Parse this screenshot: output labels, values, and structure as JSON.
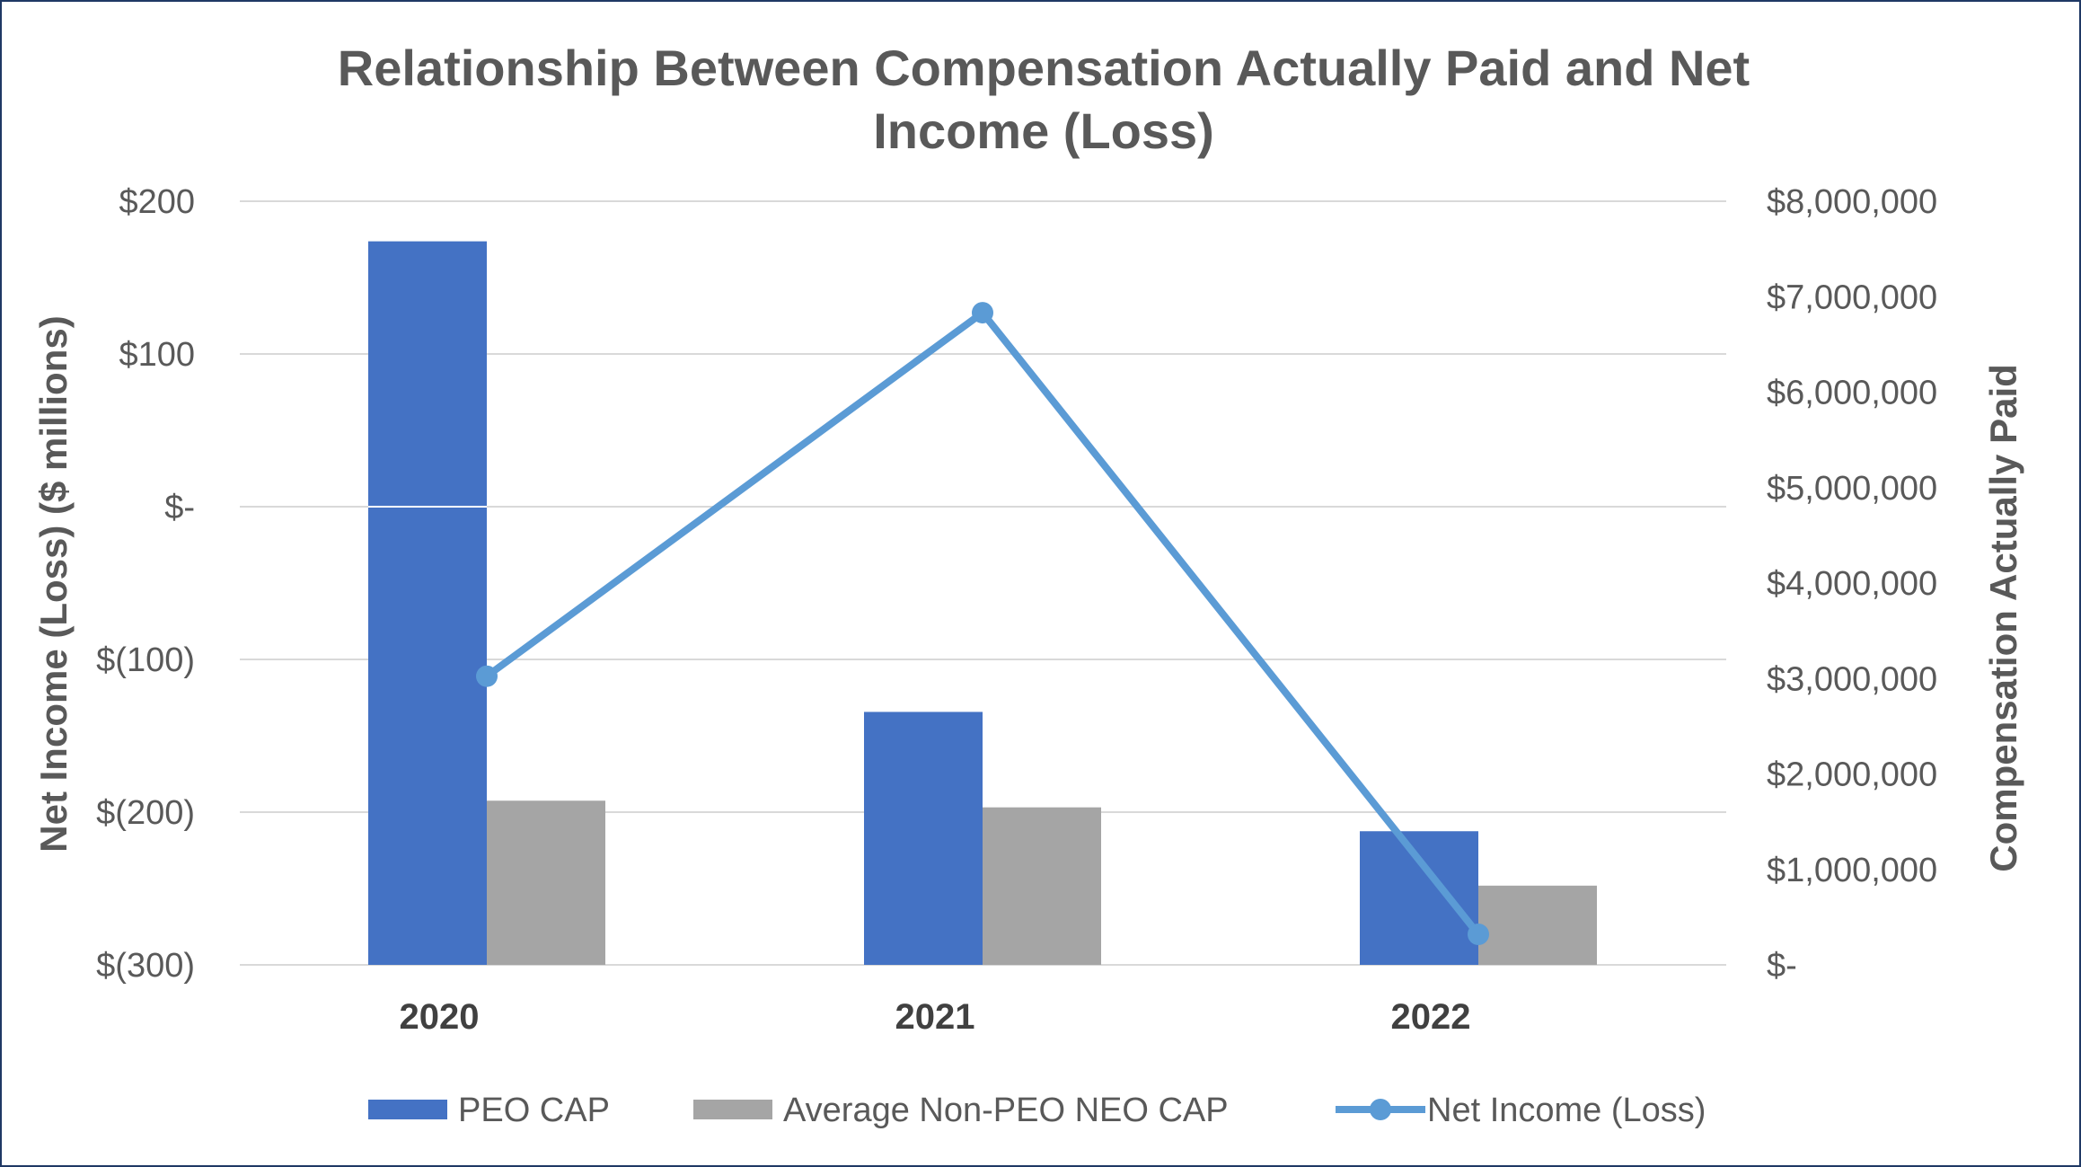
{
  "chart_data": {
    "type": "bar",
    "title_line1": "Relationship Between Compensation Actually Paid and Net",
    "title_line2": "Income (Loss)",
    "categories": [
      "2020",
      "2021",
      "2022"
    ],
    "y_left": {
      "label": "Net Income (Loss) ($ millions)",
      "range": [
        -300,
        200
      ],
      "ticks": [
        200,
        100,
        0,
        -100,
        -200,
        -300
      ],
      "tick_labels": [
        "$200",
        "$100",
        "$-",
        "$(100)",
        "$(200)",
        "$(300)"
      ]
    },
    "y_right": {
      "label": "Compensation Actually Paid",
      "range": [
        0,
        8000000
      ],
      "ticks": [
        8000000,
        7000000,
        6000000,
        5000000,
        4000000,
        3000000,
        2000000,
        1000000,
        0
      ],
      "tick_labels": [
        "$8,000,000",
        "$7,000,000",
        "$6,000,000",
        "$5,000,000",
        "$4,000,000",
        "$3,000,000",
        "$2,000,000",
        "$1,000,000",
        "$-"
      ]
    },
    "series": [
      {
        "name": "PEO CAP",
        "type": "bar",
        "axis": "right",
        "color": "#4472c4",
        "values": [
          7580000,
          2650000,
          1400000
        ]
      },
      {
        "name": "Average Non-PEO NEO CAP",
        "type": "bar",
        "axis": "right",
        "color": "#a5a5a5",
        "values": [
          1720000,
          1650000,
          830000
        ]
      },
      {
        "name": "Net Income (Loss)",
        "type": "line",
        "axis": "left",
        "color": "#5b9bd5",
        "values": [
          -111,
          127,
          -280
        ]
      }
    ],
    "legend_position": "bottom",
    "grid": true
  }
}
